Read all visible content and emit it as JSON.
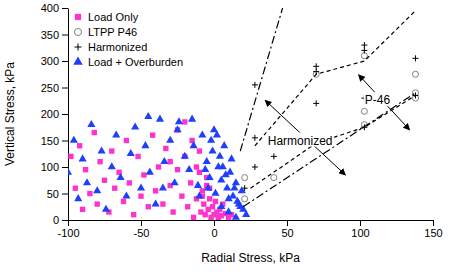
{
  "chart_data": {
    "type": "scatter",
    "x_label": "Radial Stress, kPa",
    "y_label": "Vertical Stress, kPa",
    "xlim": [
      -100,
      150
    ],
    "ylim": [
      0,
      400
    ],
    "xticks": [
      -100,
      -50,
      0,
      50,
      100,
      150
    ],
    "yticks": [
      0,
      50,
      100,
      150,
      200,
      250,
      300,
      350,
      400
    ],
    "grid": false,
    "legend": "upper-left",
    "series": [
      {
        "name": "Load Only",
        "color": "#ff33cc",
        "marker": "square",
        "x": [
          -98,
          -95,
          -92,
          -90,
          -88,
          -85,
          -82,
          -80,
          -78,
          -75,
          -72,
          -70,
          -68,
          -65,
          -62,
          -60,
          -58,
          -55,
          -52,
          -50,
          -48,
          -45,
          -42,
          -40,
          -38,
          -35,
          -33,
          -30,
          -28,
          -25,
          -22,
          -20,
          -18,
          -16,
          -14,
          -12,
          -10,
          -9,
          -8,
          -7,
          -6,
          -5,
          -4,
          -3,
          -2,
          -1,
          0,
          1,
          2,
          3,
          4,
          5,
          6,
          8,
          10,
          12,
          -15,
          -20,
          -25,
          -30,
          -10,
          -5,
          -3,
          -8,
          -12
        ],
        "values": [
          120,
          60,
          140,
          20,
          95,
          50,
          165,
          30,
          110,
          75,
          15,
          130,
          60,
          90,
          35,
          150,
          70,
          10,
          120,
          45,
          85,
          25,
          160,
          55,
          100,
          30,
          135,
          65,
          15,
          95,
          45,
          120,
          25,
          70,
          5,
          40,
          90,
          15,
          55,
          30,
          10,
          65,
          20,
          40,
          5,
          25,
          10,
          35,
          15,
          5,
          20,
          8,
          30,
          12,
          5,
          10,
          150,
          185,
          170,
          110,
          130,
          80,
          60,
          45,
          100
        ]
      },
      {
        "name": "LTPP P46",
        "color": "#808080",
        "marker": "circle",
        "x": [
          21,
          21,
          41,
          70,
          70,
          103,
          103,
          103,
          138,
          138,
          138
        ],
        "values": [
          40,
          80,
          80,
          150,
          275,
          310,
          205,
          180,
          275,
          240,
          230
        ]
      },
      {
        "name": "Harmonized",
        "color": "#000000",
        "marker": "plus",
        "x": [
          28,
          28,
          28,
          70,
          70,
          70,
          70,
          103,
          103,
          103,
          103,
          138,
          138,
          21,
          41
        ],
        "values": [
          255,
          155,
          100,
          290,
          280,
          220,
          145,
          330,
          320,
          230,
          175,
          305,
          235,
          60,
          120
        ]
      },
      {
        "name": "Load + Overburden",
        "color": "#1f3fff",
        "marker": "triangle",
        "x": [
          -100,
          -96,
          -93,
          -90,
          -87,
          -84,
          -80,
          -77,
          -74,
          -70,
          -67,
          -64,
          -60,
          -57,
          -54,
          -50,
          -47,
          -44,
          -40,
          -37,
          -34,
          -30,
          -27,
          -24,
          -20,
          -17,
          -14,
          -11,
          -8,
          -5,
          -3,
          -1,
          1,
          3,
          5,
          7,
          9,
          11,
          13,
          15,
          17,
          19,
          20,
          22,
          2,
          4,
          6,
          8,
          10,
          12,
          14,
          16,
          18,
          0,
          -2,
          -4,
          -6,
          -10,
          -15,
          -25,
          5,
          10,
          15,
          -35,
          -45
        ],
        "values": [
          90,
          150,
          40,
          115,
          70,
          180,
          55,
          130,
          20,
          100,
          160,
          80,
          45,
          125,
          175,
          60,
          140,
          90,
          30,
          190,
          110,
          150,
          70,
          185,
          120,
          95,
          140,
          65,
          160,
          110,
          80,
          130,
          50,
          100,
          75,
          140,
          60,
          90,
          45,
          70,
          30,
          55,
          20,
          10,
          160,
          120,
          100,
          85,
          40,
          115,
          60,
          35,
          25,
          170,
          150,
          60,
          95,
          45,
          190,
          170,
          25,
          15,
          5,
          60,
          195
        ]
      }
    ],
    "lines": [
      {
        "line_style": "dashdot",
        "color": "#000000",
        "x": [
          18,
          47
        ],
        "values": [
          130,
          400
        ]
      },
      {
        "line_style": "dashdot",
        "color": "#000000",
        "x": [
          20,
          138
        ],
        "values": [
          25,
          240
        ]
      },
      {
        "line_style": "dashed",
        "color": "#000000",
        "x": [
          28,
          70,
          103,
          138
        ],
        "values": [
          140,
          275,
          300,
          395
        ]
      },
      {
        "line_style": "dashed",
        "color": "#000000",
        "x": [
          25,
          70,
          103,
          138
        ],
        "values": [
          60,
          145,
          175,
          235
        ]
      }
    ],
    "annotations": [
      {
        "text": "Harmonized",
        "x": 59,
        "y": 150,
        "arrow": {
          "x": [
            35,
            90
          ],
          "y": [
            226,
            85
          ]
        }
      },
      {
        "text": "P-46",
        "x": 112,
        "y": 226,
        "arrow": {
          "x": [
            99,
            134
          ],
          "y": [
            274,
            170
          ]
        }
      }
    ]
  }
}
